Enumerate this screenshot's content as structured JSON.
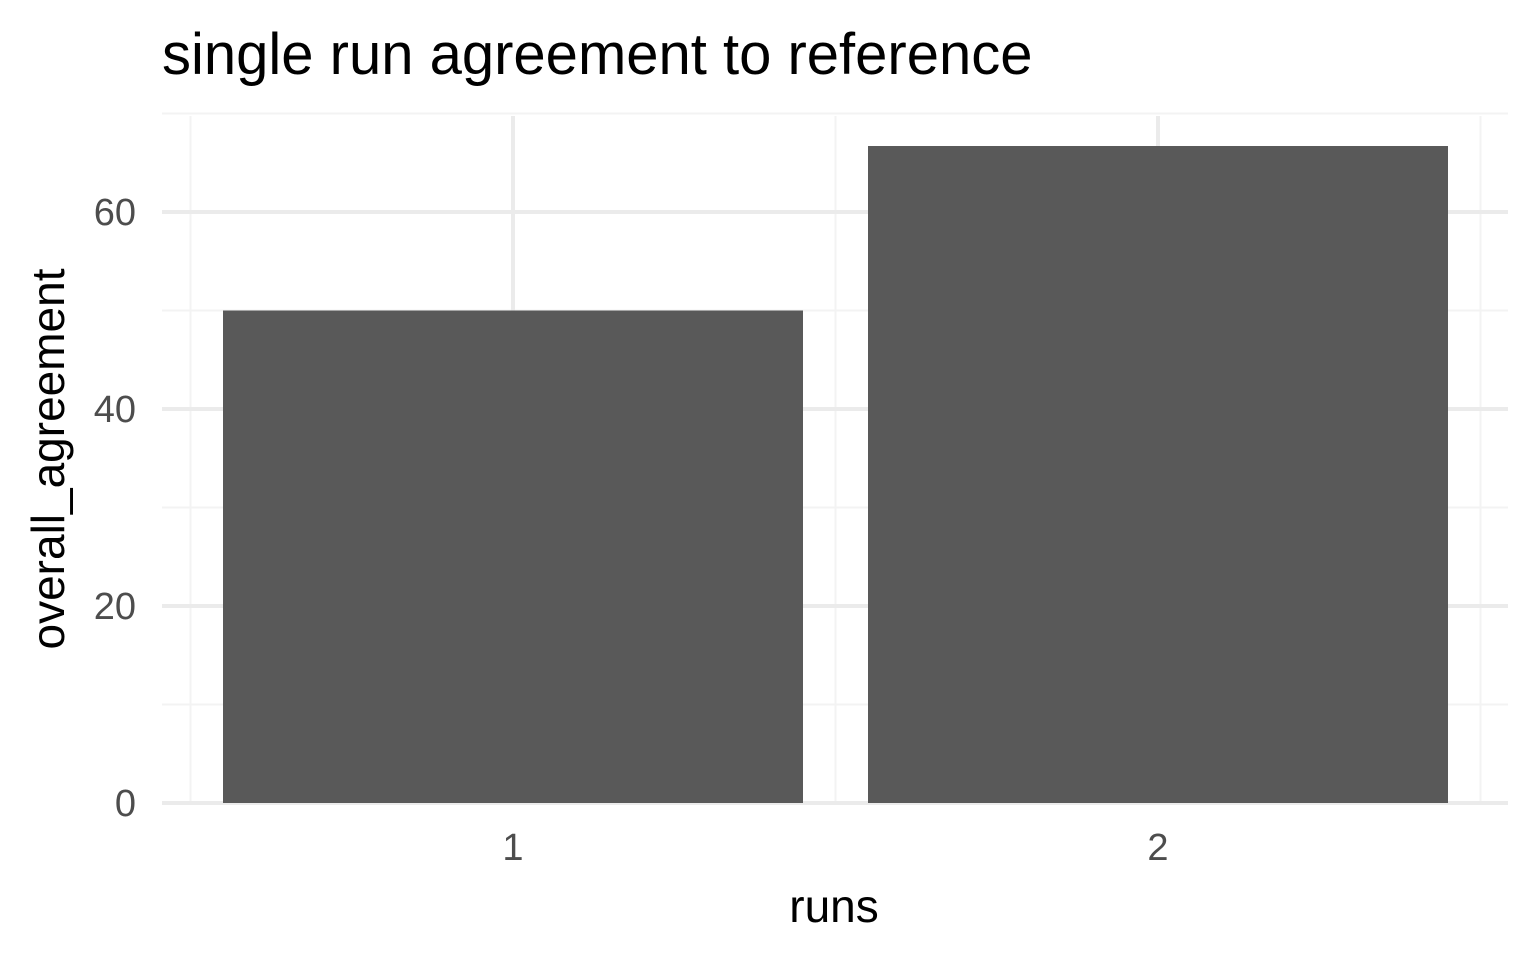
{
  "chart_data": {
    "type": "bar",
    "title": "single run agreement to reference",
    "xlabel": "runs",
    "ylabel": "overall_agreement",
    "categories": [
      "1",
      "2"
    ],
    "values": [
      50,
      66.7
    ],
    "ylim": [
      0,
      70
    ],
    "yticks": [
      0,
      20,
      40,
      60
    ],
    "ytick_labels": [
      "0",
      "20",
      "40",
      "60"
    ],
    "grid": true,
    "legend": "none",
    "bar_color": "#595959",
    "background_color": "#ffffff"
  }
}
